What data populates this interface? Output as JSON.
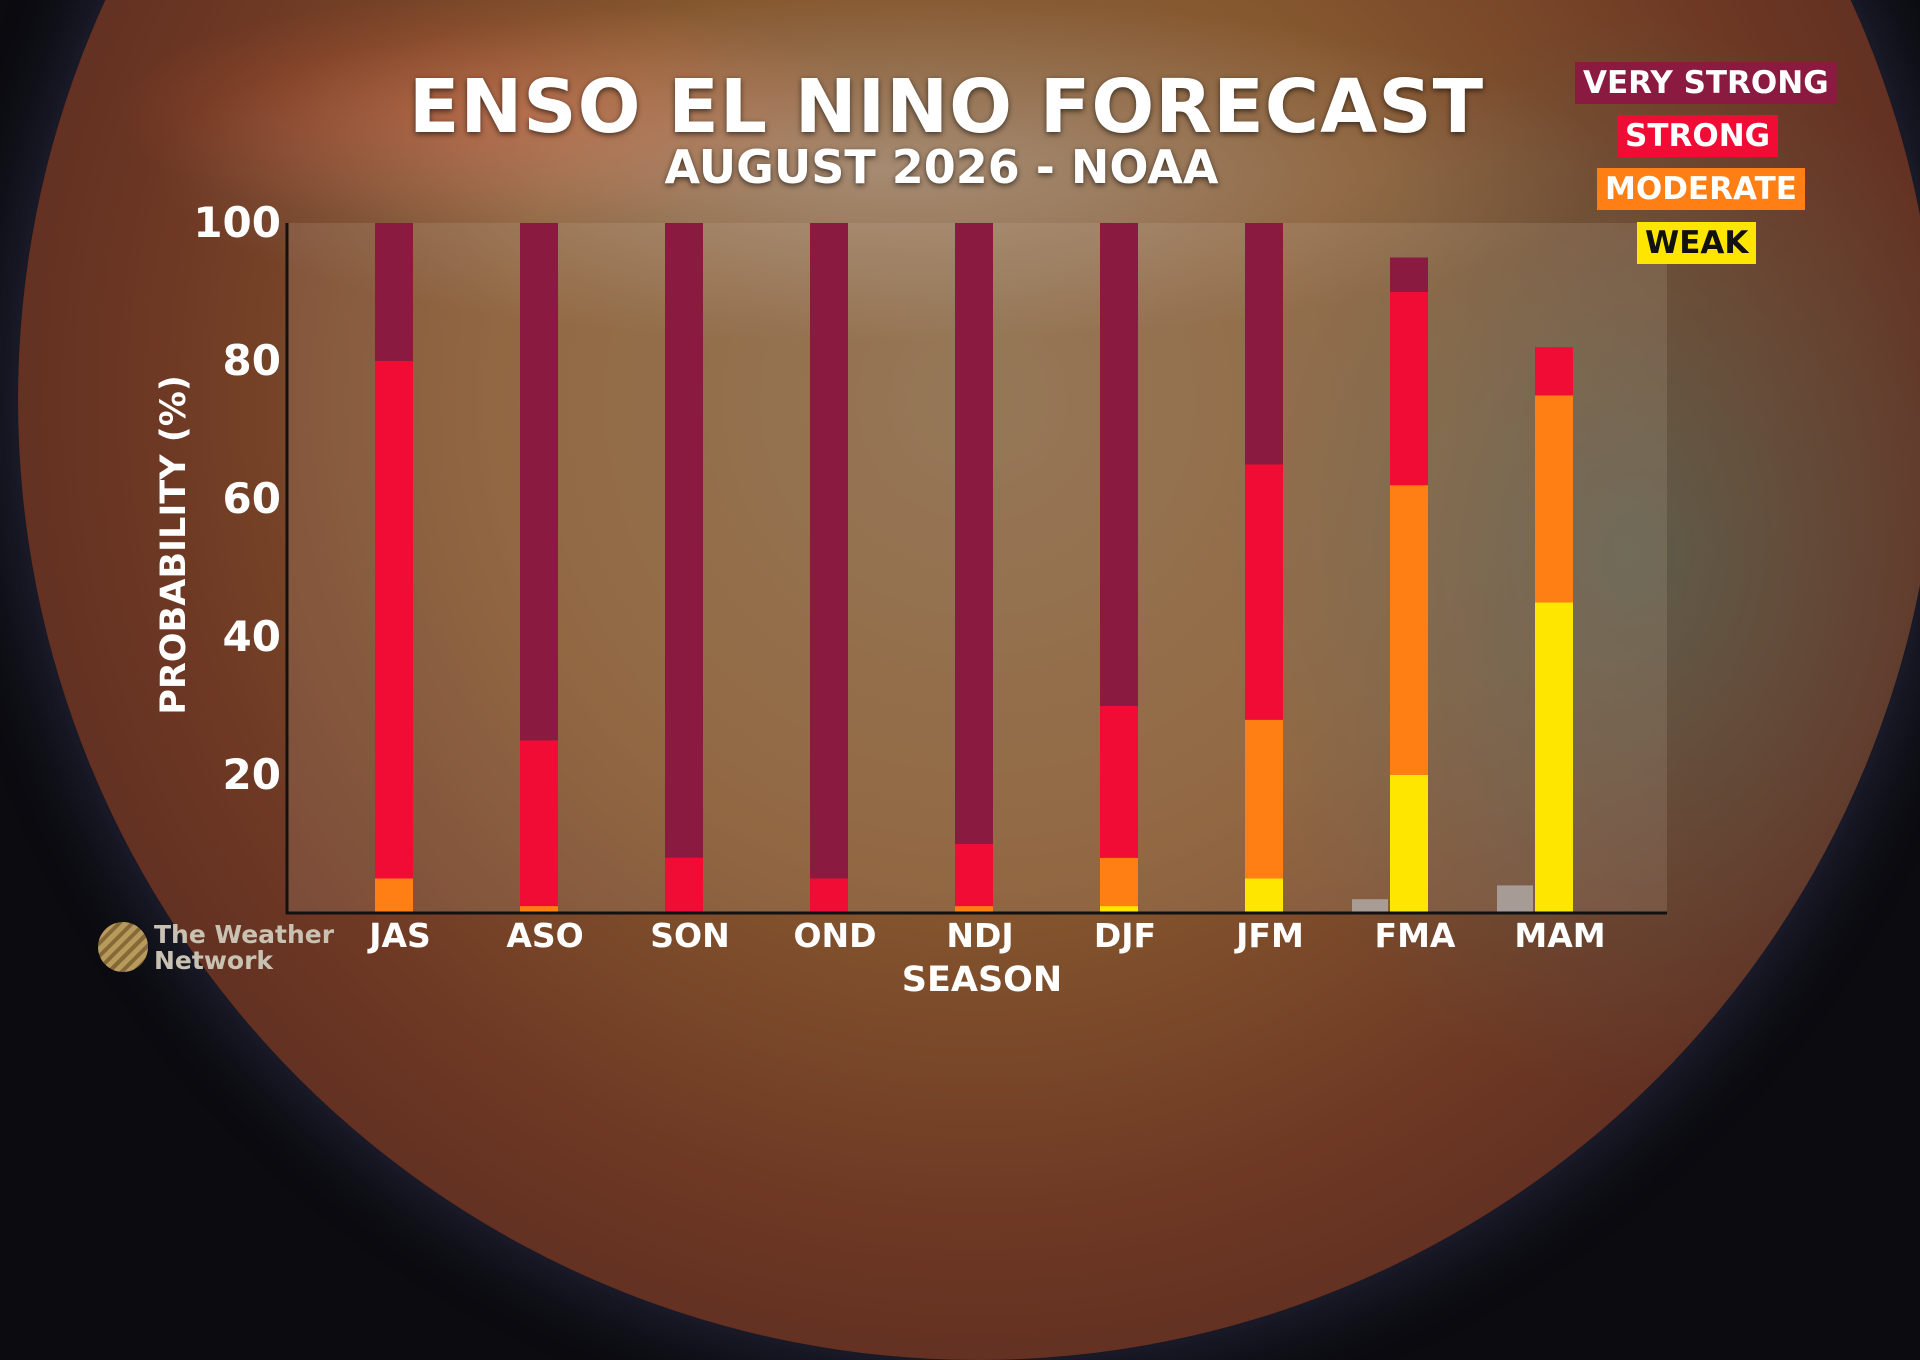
{
  "title": "ENSO EL NINO FORECAST",
  "subtitle": "AUGUST 2026 - NOAA",
  "logo": {
    "line1": "The Weather",
    "line2": "Network"
  },
  "colors": {
    "very_strong": "#8b1a40",
    "strong": "#f00c35",
    "moderate": "#ff7f14",
    "weak": "#ffe600",
    "neutral": "#b8b8b8"
  },
  "chart_data": {
    "type": "bar",
    "stacked": true,
    "xlabel": "SEASON",
    "ylabel": "PROBABILITY (%)",
    "ylim": [
      0,
      100
    ],
    "yticks": [
      20,
      40,
      60,
      80,
      100
    ],
    "categories": [
      "JAS",
      "ASO",
      "SON",
      "OND",
      "NDJ",
      "DJF",
      "JFM",
      "FMA",
      "MAM"
    ],
    "legend": {
      "placement": "top-right",
      "entries": [
        "VERY STRONG",
        "STRONG",
        "MODERATE",
        "WEAK"
      ]
    },
    "series": [
      {
        "name": "WEAK",
        "values": [
          0,
          0,
          0,
          0,
          0,
          1,
          5,
          20,
          45
        ]
      },
      {
        "name": "MODERATE",
        "values": [
          5,
          1,
          0,
          0,
          1,
          7,
          23,
          42,
          30
        ]
      },
      {
        "name": "STRONG",
        "values": [
          75,
          24,
          8,
          5,
          9,
          22,
          37,
          28,
          7
        ]
      },
      {
        "name": "VERY STRONG",
        "values": [
          20,
          75,
          92,
          95,
          90,
          70,
          35,
          5,
          0
        ]
      }
    ],
    "unlabeled_bar_values": [
      0,
      0,
      0,
      0,
      0,
      0,
      0,
      2,
      4
    ]
  }
}
